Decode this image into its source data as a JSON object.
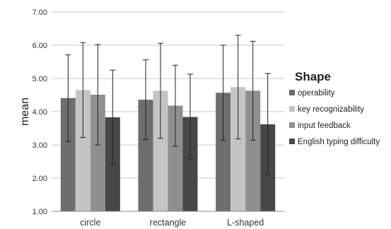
{
  "chart_data": {
    "type": "bar",
    "title": "",
    "xlabel": "",
    "ylabel": "mean",
    "ylim": [
      1,
      7
    ],
    "yticks": [
      "1.00",
      "2.00",
      "3.00",
      "4.00",
      "5.00",
      "6.00",
      "7.00"
    ],
    "grid": true,
    "error_bars": true,
    "categories": [
      "circle",
      "rectangle",
      "L-shaped"
    ],
    "legend": {
      "title": "Shape",
      "placement": "right"
    },
    "series": [
      {
        "name": "operability",
        "color": "#6e6e6e",
        "values": [
          4.41,
          4.36,
          4.57
        ],
        "error_low": [
          3.1,
          3.16,
          3.14
        ],
        "error_high": [
          5.71,
          5.56,
          6.0
        ]
      },
      {
        "name": "key recognizability",
        "color": "#c4c4c4",
        "values": [
          4.65,
          4.63,
          4.74
        ],
        "error_low": [
          3.22,
          3.2,
          3.18
        ],
        "error_high": [
          6.08,
          6.06,
          6.3
        ]
      },
      {
        "name": "input feedback",
        "color": "#8f8f8f",
        "values": [
          4.51,
          4.18,
          4.63
        ],
        "error_low": [
          3.0,
          2.96,
          3.14
        ],
        "error_high": [
          6.02,
          5.4,
          6.12
        ]
      },
      {
        "name": "English typing difficulty",
        "color": "#474747",
        "values": [
          3.83,
          3.84,
          3.62
        ],
        "error_low": [
          2.42,
          2.56,
          2.1
        ],
        "error_high": [
          5.25,
          5.13,
          5.15
        ]
      }
    ]
  }
}
